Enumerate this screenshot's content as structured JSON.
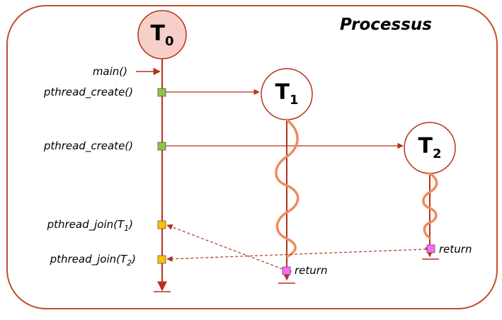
{
  "title": "Processus",
  "threads": [
    {
      "letter": "T",
      "index": "0"
    },
    {
      "letter": "T",
      "index": "1"
    },
    {
      "letter": "T",
      "index": "2"
    }
  ],
  "calls": {
    "main": "main()",
    "create1": "pthread_create()",
    "create2": "pthread_create()",
    "join1_prefix": "pthread_join(T",
    "join1_sub": "1",
    "join1_suffix": ")",
    "join2_prefix": "pthread_join(T",
    "join2_sub": "2",
    "join2_suffix": ")"
  },
  "returns": {
    "t1": "return",
    "t2": "return"
  },
  "colors": {
    "frame": "#c0502a",
    "line": "#b5321a",
    "wave": "#f08a60",
    "t0_fill": "#f6cfc8",
    "create_marker": "#8dc63f",
    "join_marker": "#ffc000",
    "return_marker": "#ff66ff"
  }
}
